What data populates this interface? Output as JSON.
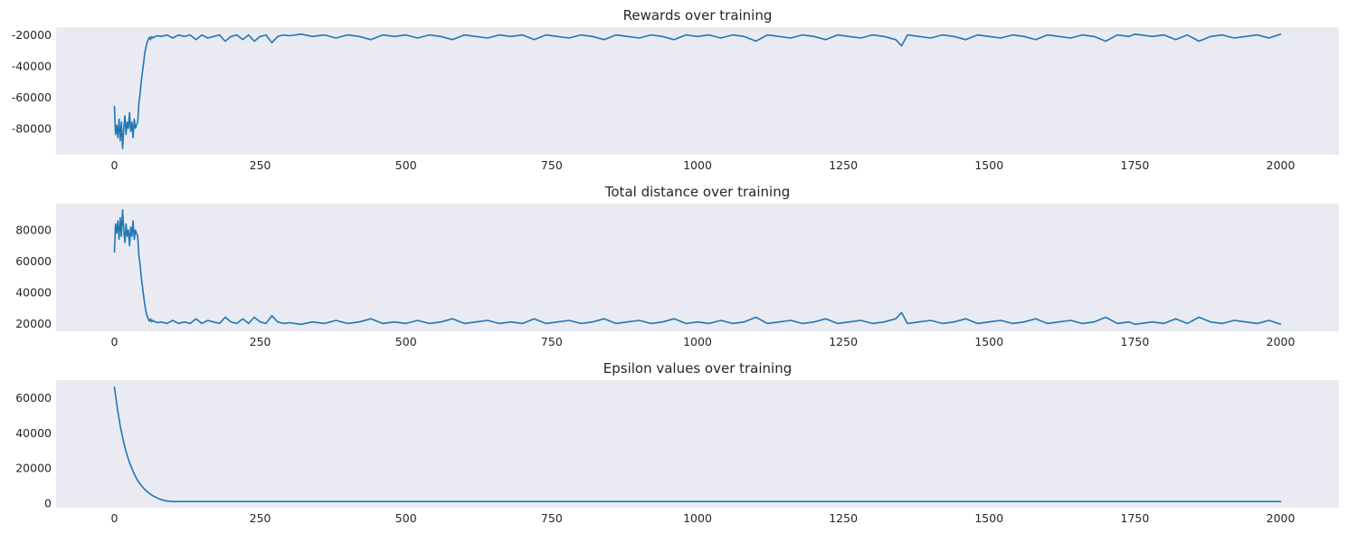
{
  "chart_data": [
    {
      "type": "line",
      "title": "Rewards over training",
      "xlabel": "",
      "ylabel": "",
      "xlim": [
        -100,
        2100
      ],
      "ylim": [
        -97000,
        -15000
      ],
      "xticks": [
        0,
        250,
        500,
        750,
        1000,
        1250,
        1500,
        1750,
        2000
      ],
      "yticks": [
        -80000,
        -60000,
        -40000,
        -20000
      ],
      "grid": false,
      "background": "#eaeaf2",
      "series": [
        {
          "color": "#1f77b4",
          "x": [
            0,
            2,
            4,
            6,
            8,
            10,
            12,
            14,
            16,
            18,
            20,
            22,
            24,
            26,
            28,
            30,
            32,
            34,
            36,
            38,
            40,
            42,
            44,
            46,
            48,
            50,
            52,
            54,
            56,
            58,
            60,
            62,
            64,
            66,
            70,
            75,
            80,
            90,
            100,
            110,
            120,
            130,
            140,
            150,
            160,
            170,
            180,
            190,
            200,
            210,
            220,
            230,
            240,
            250,
            260,
            270,
            280,
            290,
            300,
            320,
            340,
            360,
            380,
            400,
            420,
            440,
            460,
            480,
            500,
            520,
            540,
            560,
            580,
            600,
            620,
            640,
            660,
            680,
            700,
            720,
            740,
            760,
            780,
            800,
            820,
            840,
            860,
            880,
            900,
            920,
            940,
            960,
            980,
            1000,
            1020,
            1040,
            1060,
            1080,
            1100,
            1120,
            1140,
            1160,
            1180,
            1200,
            1220,
            1240,
            1260,
            1280,
            1300,
            1320,
            1340,
            1350,
            1360,
            1380,
            1400,
            1420,
            1440,
            1460,
            1480,
            1500,
            1520,
            1540,
            1560,
            1580,
            1600,
            1620,
            1640,
            1660,
            1680,
            1700,
            1720,
            1740,
            1750,
            1760,
            1780,
            1800,
            1820,
            1840,
            1860,
            1880,
            1900,
            1920,
            1940,
            1960,
            1980,
            2000
          ],
          "y": [
            -66000,
            -84000,
            -78000,
            -86000,
            -74000,
            -88000,
            -76000,
            -93000,
            -80000,
            -72000,
            -84000,
            -76000,
            -80000,
            -70000,
            -82000,
            -76000,
            -86000,
            -74000,
            -80000,
            -78000,
            -76000,
            -64000,
            -58000,
            -50000,
            -44000,
            -38000,
            -32000,
            -28000,
            -25000,
            -23000,
            -21500,
            -23000,
            -21000,
            -22000,
            -21000,
            -20500,
            -21000,
            -20000,
            -22000,
            -20000,
            -21000,
            -20000,
            -23000,
            -20000,
            -22000,
            -21000,
            -20000,
            -24000,
            -21000,
            -20000,
            -23000,
            -20000,
            -24000,
            -21000,
            -20000,
            -25000,
            -21000,
            -20000,
            -20500,
            -19500,
            -21000,
            -20000,
            -22000,
            -20000,
            -21000,
            -23000,
            -20000,
            -21000,
            -20000,
            -22000,
            -20000,
            -21000,
            -23000,
            -20000,
            -21000,
            -22000,
            -20000,
            -21000,
            -20000,
            -23000,
            -20000,
            -21000,
            -22000,
            -20000,
            -21000,
            -23000,
            -20000,
            -21000,
            -22000,
            -20000,
            -21000,
            -23000,
            -20000,
            -21000,
            -20000,
            -22000,
            -20000,
            -21000,
            -24000,
            -20000,
            -21000,
            -22000,
            -20000,
            -21000,
            -23000,
            -20000,
            -21000,
            -22000,
            -20000,
            -21000,
            -23000,
            -27000,
            -20000,
            -21000,
            -22000,
            -20000,
            -21000,
            -23000,
            -20000,
            -21000,
            -22000,
            -20000,
            -21000,
            -23000,
            -20000,
            -21000,
            -22000,
            -20000,
            -21000,
            -24000,
            -20000,
            -21000,
            -19500,
            -20000,
            -21000,
            -20000,
            -23000,
            -20000,
            -24000,
            -21000,
            -20000,
            -22000,
            -21000,
            -20000,
            -22000,
            -19500
          ]
        }
      ]
    },
    {
      "type": "line",
      "title": "Total distance over training",
      "xlabel": "",
      "ylabel": "",
      "xlim": [
        -100,
        2100
      ],
      "ylim": [
        15000,
        97000
      ],
      "xticks": [
        0,
        250,
        500,
        750,
        1000,
        1250,
        1500,
        1750,
        2000
      ],
      "yticks": [
        20000,
        40000,
        60000,
        80000
      ],
      "grid": false,
      "background": "#eaeaf2",
      "series": [
        {
          "color": "#1f77b4",
          "x": [
            0,
            2,
            4,
            6,
            8,
            10,
            12,
            14,
            16,
            18,
            20,
            22,
            24,
            26,
            28,
            30,
            32,
            34,
            36,
            38,
            40,
            42,
            44,
            46,
            48,
            50,
            52,
            54,
            56,
            58,
            60,
            62,
            64,
            66,
            70,
            75,
            80,
            90,
            100,
            110,
            120,
            130,
            140,
            150,
            160,
            170,
            180,
            190,
            200,
            210,
            220,
            230,
            240,
            250,
            260,
            270,
            280,
            290,
            300,
            320,
            340,
            360,
            380,
            400,
            420,
            440,
            460,
            480,
            500,
            520,
            540,
            560,
            580,
            600,
            620,
            640,
            660,
            680,
            700,
            720,
            740,
            760,
            780,
            800,
            820,
            840,
            860,
            880,
            900,
            920,
            940,
            960,
            980,
            1000,
            1020,
            1040,
            1060,
            1080,
            1100,
            1120,
            1140,
            1160,
            1180,
            1200,
            1220,
            1240,
            1260,
            1280,
            1300,
            1320,
            1340,
            1350,
            1360,
            1380,
            1400,
            1420,
            1440,
            1460,
            1480,
            1500,
            1520,
            1540,
            1560,
            1580,
            1600,
            1620,
            1640,
            1660,
            1680,
            1700,
            1720,
            1740,
            1750,
            1760,
            1780,
            1800,
            1820,
            1840,
            1860,
            1880,
            1900,
            1920,
            1940,
            1960,
            1980,
            2000
          ],
          "y": [
            66000,
            84000,
            78000,
            86000,
            74000,
            88000,
            76000,
            93000,
            80000,
            72000,
            84000,
            76000,
            80000,
            70000,
            82000,
            76000,
            86000,
            74000,
            80000,
            78000,
            76000,
            64000,
            58000,
            50000,
            44000,
            38000,
            32000,
            28000,
            25000,
            23000,
            21500,
            23000,
            21000,
            22000,
            21000,
            20500,
            21000,
            20000,
            22000,
            20000,
            21000,
            20000,
            23000,
            20000,
            22000,
            21000,
            20000,
            24000,
            21000,
            20000,
            23000,
            20000,
            24000,
            21000,
            20000,
            25000,
            21000,
            20000,
            20500,
            19500,
            21000,
            20000,
            22000,
            20000,
            21000,
            23000,
            20000,
            21000,
            20000,
            22000,
            20000,
            21000,
            23000,
            20000,
            21000,
            22000,
            20000,
            21000,
            20000,
            23000,
            20000,
            21000,
            22000,
            20000,
            21000,
            23000,
            20000,
            21000,
            22000,
            20000,
            21000,
            23000,
            20000,
            21000,
            20000,
            22000,
            20000,
            21000,
            24000,
            20000,
            21000,
            22000,
            20000,
            21000,
            23000,
            20000,
            21000,
            22000,
            20000,
            21000,
            23000,
            27000,
            20000,
            21000,
            22000,
            20000,
            21000,
            23000,
            20000,
            21000,
            22000,
            20000,
            21000,
            23000,
            20000,
            21000,
            22000,
            20000,
            21000,
            24000,
            20000,
            21000,
            19500,
            20000,
            21000,
            20000,
            23000,
            20000,
            24000,
            21000,
            20000,
            22000,
            21000,
            20000,
            22000,
            19500
          ]
        }
      ]
    },
    {
      "type": "line",
      "title": "Epsilon values over training",
      "xlabel": "",
      "ylabel": "",
      "xlim": [
        -100,
        2100
      ],
      "ylim": [
        -2500,
        70000
      ],
      "xticks": [
        0,
        250,
        500,
        750,
        1000,
        1250,
        1500,
        1750,
        2000
      ],
      "yticks": [
        0,
        20000,
        40000,
        60000
      ],
      "grid": false,
      "background": "#eaeaf2",
      "series": [
        {
          "color": "#1f77b4",
          "x": [
            0,
            5,
            10,
            15,
            20,
            25,
            30,
            35,
            40,
            45,
            50,
            55,
            60,
            65,
            70,
            75,
            80,
            85,
            90,
            100,
            120,
            150,
            200,
            300,
            500,
            750,
            1000,
            1250,
            1500,
            1750,
            2000
          ],
          "y": [
            66000,
            54000,
            44000,
            36000,
            29500,
            24000,
            19700,
            16000,
            13000,
            10600,
            8600,
            7000,
            5600,
            4500,
            3600,
            2800,
            2200,
            1700,
            1300,
            1000,
            1000,
            1000,
            1000,
            1000,
            1000,
            1000,
            1000,
            1000,
            1000,
            1000,
            1000
          ]
        }
      ]
    }
  ]
}
